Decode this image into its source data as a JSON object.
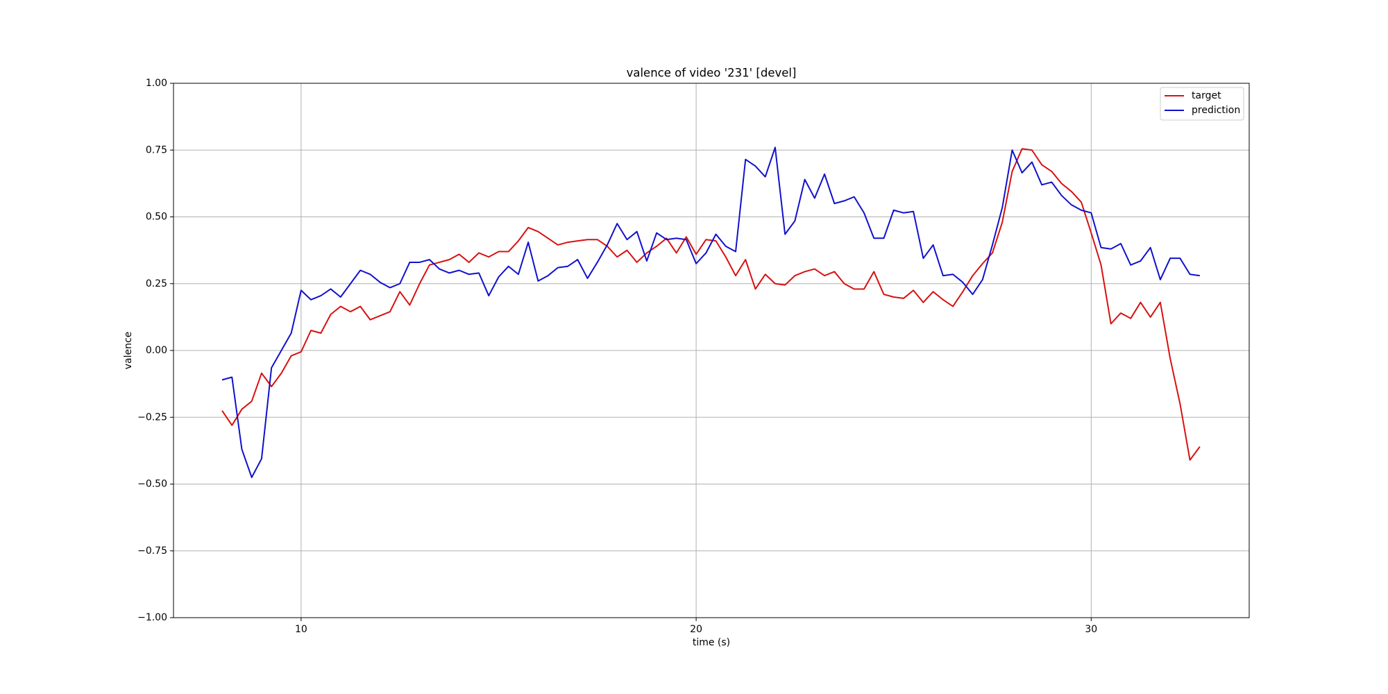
{
  "chart_data": {
    "type": "line",
    "title": "valence of video '231' [devel]",
    "xlabel": "time (s)",
    "ylabel": "valence",
    "x": [
      8.0,
      8.25,
      8.5,
      8.75,
      9.0,
      9.25,
      9.5,
      9.75,
      10.0,
      10.25,
      10.5,
      10.75,
      11.0,
      11.25,
      11.5,
      11.75,
      12.0,
      12.25,
      12.5,
      12.75,
      13.0,
      13.25,
      13.5,
      13.75,
      14.0,
      14.25,
      14.5,
      14.75,
      15.0,
      15.25,
      15.5,
      15.75,
      16.0,
      16.25,
      16.5,
      16.75,
      17.0,
      17.25,
      17.5,
      17.75,
      18.0,
      18.25,
      18.5,
      18.75,
      19.0,
      19.25,
      19.5,
      19.75,
      20.0,
      20.25,
      20.5,
      20.75,
      21.0,
      21.25,
      21.5,
      21.75,
      22.0,
      22.25,
      22.5,
      22.75,
      23.0,
      23.25,
      23.5,
      23.75,
      24.0,
      24.25,
      24.5,
      24.75,
      25.0,
      25.25,
      25.5,
      25.75,
      26.0,
      26.25,
      26.5,
      26.75,
      27.0,
      27.25,
      27.5,
      27.75,
      28.0,
      28.25,
      28.5,
      28.75,
      29.0,
      29.25,
      29.5,
      29.75,
      30.0,
      30.25,
      30.5,
      30.75,
      31.0,
      31.25,
      31.5,
      31.75,
      32.0,
      32.25,
      32.5,
      32.75
    ],
    "series": [
      {
        "name": "target",
        "color": "#d81010",
        "values": [
          -0.225,
          -0.28,
          -0.22,
          -0.19,
          -0.085,
          -0.135,
          -0.085,
          -0.02,
          -0.005,
          0.075,
          0.065,
          0.135,
          0.165,
          0.145,
          0.165,
          0.115,
          0.13,
          0.145,
          0.22,
          0.17,
          0.25,
          0.32,
          0.33,
          0.34,
          0.36,
          0.33,
          0.365,
          0.35,
          0.37,
          0.37,
          0.41,
          0.46,
          0.445,
          0.42,
          0.395,
          0.405,
          0.41,
          0.415,
          0.415,
          0.39,
          0.35,
          0.375,
          0.33,
          0.365,
          0.39,
          0.42,
          0.365,
          0.425,
          0.36,
          0.415,
          0.41,
          0.35,
          0.28,
          0.34,
          0.23,
          0.285,
          0.25,
          0.245,
          0.28,
          0.295,
          0.305,
          0.28,
          0.295,
          0.25,
          0.23,
          0.23,
          0.295,
          0.21,
          0.2,
          0.195,
          0.225,
          0.18,
          0.22,
          0.19,
          0.165,
          0.22,
          0.28,
          0.325,
          0.365,
          0.48,
          0.67,
          0.755,
          0.75,
          0.695,
          0.67,
          0.625,
          0.595,
          0.555,
          0.44,
          0.32,
          0.1,
          0.14,
          0.12,
          0.18,
          0.125,
          0.18,
          -0.03,
          -0.2,
          -0.41,
          -0.36
        ]
      },
      {
        "name": "prediction",
        "color": "#1010cc",
        "values": [
          -0.11,
          -0.1,
          -0.37,
          -0.475,
          -0.405,
          -0.065,
          0.0,
          0.065,
          0.225,
          0.19,
          0.205,
          0.23,
          0.2,
          0.25,
          0.3,
          0.285,
          0.255,
          0.235,
          0.25,
          0.33,
          0.33,
          0.34,
          0.305,
          0.29,
          0.3,
          0.285,
          0.29,
          0.205,
          0.275,
          0.315,
          0.285,
          0.405,
          0.26,
          0.28,
          0.31,
          0.315,
          0.34,
          0.27,
          0.33,
          0.395,
          0.475,
          0.415,
          0.445,
          0.335,
          0.44,
          0.415,
          0.42,
          0.415,
          0.325,
          0.365,
          0.435,
          0.39,
          0.37,
          0.715,
          0.69,
          0.65,
          0.76,
          0.435,
          0.485,
          0.64,
          0.57,
          0.66,
          0.55,
          0.56,
          0.575,
          0.515,
          0.42,
          0.42,
          0.525,
          0.515,
          0.52,
          0.345,
          0.395,
          0.28,
          0.285,
          0.255,
          0.21,
          0.265,
          0.395,
          0.535,
          0.75,
          0.665,
          0.705,
          0.62,
          0.63,
          0.58,
          0.545,
          0.525,
          0.515,
          0.385,
          0.38,
          0.4,
          0.32,
          0.335,
          0.385,
          0.265,
          0.345,
          0.345,
          0.285,
          0.28
        ]
      }
    ],
    "xlim": [
      6.77,
      34.0
    ],
    "ylim": [
      -1.0,
      1.0
    ],
    "xticks": [
      10,
      20,
      30
    ],
    "yticks": [
      {
        "value": -1.0,
        "label": "−1.00"
      },
      {
        "value": -0.75,
        "label": "−0.75"
      },
      {
        "value": -0.5,
        "label": "−0.50"
      },
      {
        "value": -0.25,
        "label": "−0.25"
      },
      {
        "value": 0.0,
        "label": "0.00"
      },
      {
        "value": 0.25,
        "label": "0.25"
      },
      {
        "value": 0.5,
        "label": "0.50"
      },
      {
        "value": 0.75,
        "label": "0.75"
      },
      {
        "value": 1.0,
        "label": "1.00"
      }
    ],
    "grid": true,
    "legend": "upper right"
  }
}
